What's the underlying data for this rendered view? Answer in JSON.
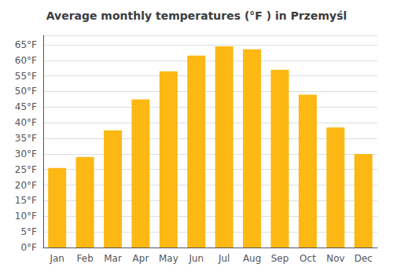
{
  "chart_data": {
    "type": "bar",
    "title": "Average monthly temperatures (°F ) in Przemyśl",
    "categories": [
      "Jan",
      "Feb",
      "Mar",
      "Apr",
      "May",
      "Jun",
      "Jul",
      "Aug",
      "Sep",
      "Oct",
      "Nov",
      "Dec"
    ],
    "values": [
      25.5,
      29.0,
      37.5,
      47.5,
      56.5,
      61.5,
      64.5,
      63.5,
      57.0,
      49.0,
      38.5,
      30.0
    ],
    "color": "#FDB813",
    "ylim": [
      0,
      68
    ],
    "yticks": [
      {
        "value": 0,
        "label": "0°F"
      },
      {
        "value": 5,
        "label": "5°F"
      },
      {
        "value": 10,
        "label": "10°F"
      },
      {
        "value": 15,
        "label": "15°F"
      },
      {
        "value": 20,
        "label": "20°F"
      },
      {
        "value": 25,
        "label": "25°F"
      },
      {
        "value": 30,
        "label": "30°F"
      },
      {
        "value": 35,
        "label": "35°F"
      },
      {
        "value": 40,
        "label": "40°F"
      },
      {
        "value": 45,
        "label": "45°F"
      },
      {
        "value": 50,
        "label": "50°F"
      },
      {
        "value": 55,
        "label": "55°F"
      },
      {
        "value": 60,
        "label": "60°F"
      },
      {
        "value": 65,
        "label": "65°F"
      }
    ],
    "grid": true
  }
}
